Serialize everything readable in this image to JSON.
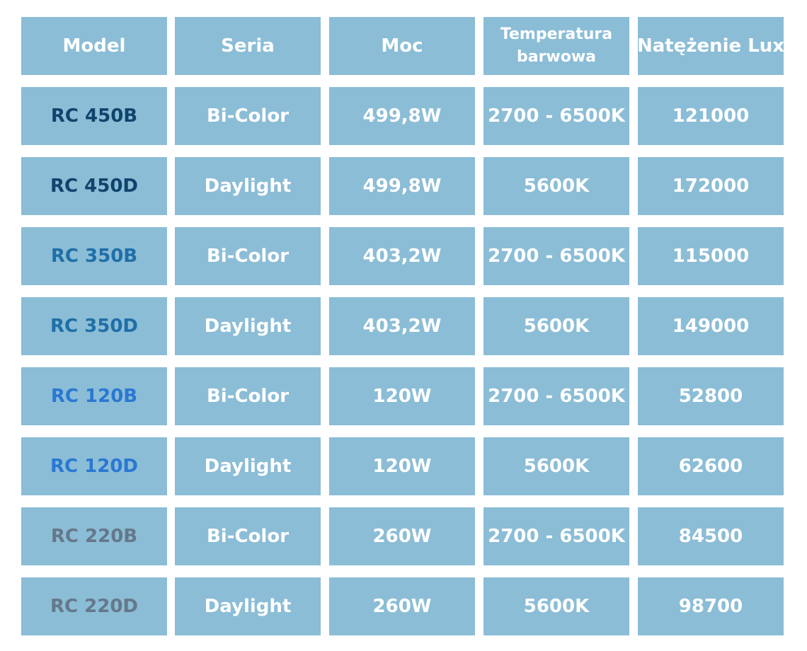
{
  "table": {
    "headers": [
      "Model",
      "Seria",
      "Moc",
      "Temperatura barwowa",
      "Natężenie Lux"
    ],
    "header_temp_line1": "Temperatura",
    "header_temp_line2": "barwowa",
    "rows": [
      {
        "model": "RC 450B",
        "series": "Bi-Color",
        "power": "499,8W",
        "temperature": "2700 - 6500K",
        "lux": "121000",
        "model_color": "#11446c"
      },
      {
        "model": "RC 450D",
        "series": "Daylight",
        "power": "499,8W",
        "temperature": "5600K",
        "lux": "172000",
        "model_color": "#11446c"
      },
      {
        "model": "RC 350B",
        "series": "Bi-Color",
        "power": "403,2W",
        "temperature": "2700 - 6500K",
        "lux": "115000",
        "model_color": "#1f6fa8"
      },
      {
        "model": "RC 350D",
        "series": "Daylight",
        "power": "403,2W",
        "temperature": "5600K",
        "lux": "149000",
        "model_color": "#1f6fa8"
      },
      {
        "model": "RC 120B",
        "series": "Bi-Color",
        "power": "120W",
        "temperature": "2700 - 6500K",
        "lux": "52800",
        "model_color": "#2a78d2"
      },
      {
        "model": "RC 120D",
        "series": "Daylight",
        "power": "120W",
        "temperature": "5600K",
        "lux": "62600",
        "model_color": "#2a78d2"
      },
      {
        "model": "RC 220B",
        "series": "Bi-Color",
        "power": "260W",
        "temperature": "2700 - 6500K",
        "lux": "84500",
        "model_color": "#65788a"
      },
      {
        "model": "RC 220D",
        "series": "Daylight",
        "power": "260W",
        "temperature": "5600K",
        "lux": "98700",
        "model_color": "#65788a"
      }
    ],
    "cell_background": "#8bbdd6",
    "text_color": "#ffffff"
  }
}
